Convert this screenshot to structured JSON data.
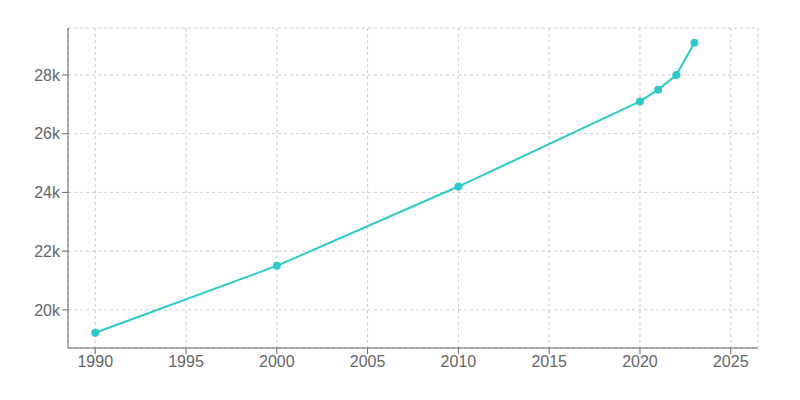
{
  "chart_data": {
    "type": "line",
    "x": [
      1990,
      2000,
      2010,
      2020,
      2021,
      2022,
      2023
    ],
    "values": [
      19220,
      21500,
      24200,
      27100,
      27500,
      28000,
      29100
    ],
    "color": "#2ec9c9",
    "marker": "circle",
    "xlim": [
      1988.5,
      2026.5
    ],
    "ylim": [
      18700,
      29600
    ],
    "xticks": [
      1990,
      1995,
      2000,
      2005,
      2010,
      2015,
      2020,
      2025
    ],
    "yticks": [
      {
        "value": 20000,
        "label": "20k"
      },
      {
        "value": 22000,
        "label": "22k"
      },
      {
        "value": 24000,
        "label": "24k"
      },
      {
        "value": 26000,
        "label": "26k"
      },
      {
        "value": 28000,
        "label": "28k"
      }
    ],
    "grid": true
  }
}
